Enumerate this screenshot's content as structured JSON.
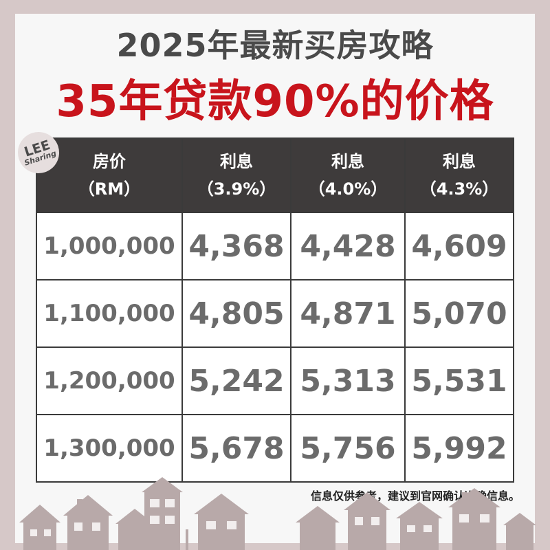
{
  "title": "2025年最新买房攻略",
  "subtitle": "35年贷款90%的价格",
  "badge": {
    "line1": "LEE",
    "line2": "Sharing"
  },
  "table": {
    "headers": [
      {
        "line1": "房价",
        "line2": "（RM）"
      },
      {
        "line1": "利息",
        "line2": "（3.9%）"
      },
      {
        "line1": "利息",
        "line2": "（4.0%）"
      },
      {
        "line1": "利息",
        "line2": "（4.3%）"
      }
    ],
    "rows": [
      [
        "1,000,000",
        "4,368",
        "4,428",
        "4,609"
      ],
      [
        "1,100,000",
        "4,805",
        "4,871",
        "5,070"
      ],
      [
        "1,200,000",
        "5,242",
        "5,313",
        "5,531"
      ],
      [
        "1,300,000",
        "5,678",
        "5,756",
        "5,992"
      ]
    ]
  },
  "note": "信息仅供参考，建议到官网确认准确信息。",
  "colors": {
    "title": "#4a4a4a",
    "subtitle": "#c8141c",
    "header_bg": "#3e3b3b",
    "frame": "#d6c8c8",
    "houses": "#b8a9a9"
  }
}
